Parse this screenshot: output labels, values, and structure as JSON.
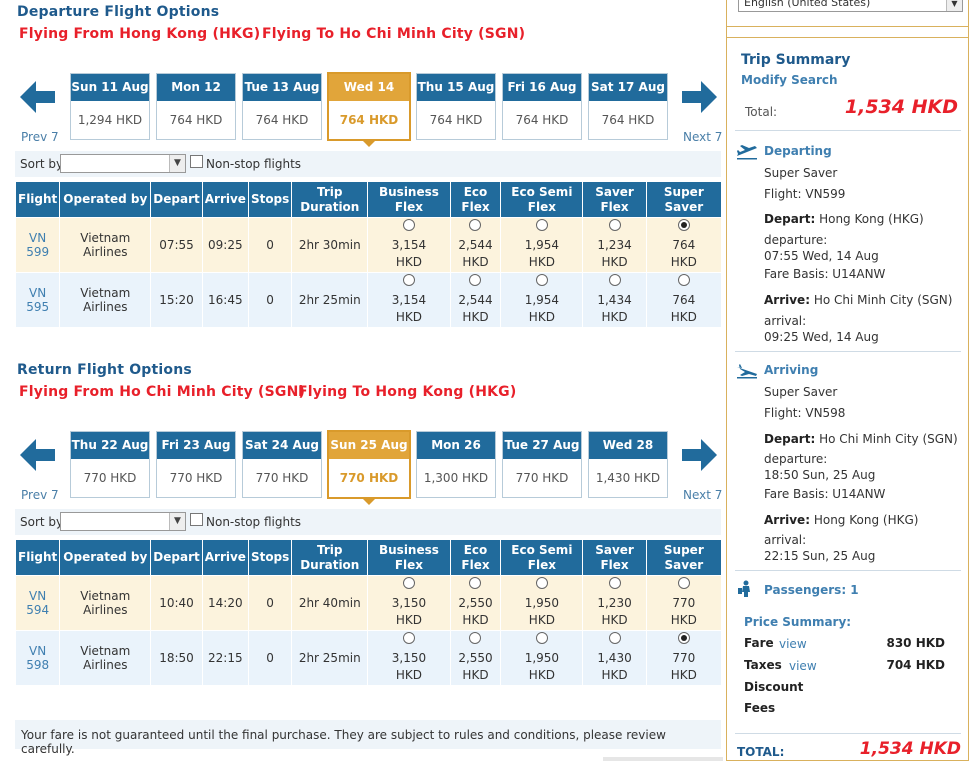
{
  "departure": {
    "title": "Departure Flight Options",
    "from": "Flying From Hong Kong (HKG)",
    "to": "Flying To Ho Chi Minh City (SGN)",
    "prev": "Prev 7",
    "next": "Next 7",
    "dates": [
      {
        "label": "Sun 11 Aug",
        "price": "1,294 HKD"
      },
      {
        "label": "Mon 12 Aug",
        "price": "764 HKD"
      },
      {
        "label": "Tue 13 Aug",
        "price": "764 HKD"
      },
      {
        "label": "Wed 14 Aug",
        "price": "764 HKD"
      },
      {
        "label": "Thu 15 Aug",
        "price": "764 HKD"
      },
      {
        "label": "Fri 16 Aug",
        "price": "764 HKD"
      },
      {
        "label": "Sat 17 Aug",
        "price": "764 HKD"
      }
    ],
    "sort_label": "Sort by",
    "nonstop_label": "Non-stop flights",
    "flights": [
      {
        "flight": "VN 599",
        "operator": "Vietnam Airlines",
        "depart": "07:55",
        "arrive": "09:25",
        "stops": "0",
        "duration": "2hr 30min",
        "fares": [
          "3,154",
          "2,544",
          "1,954",
          "1,234",
          "764"
        ],
        "currency": "HKD"
      },
      {
        "flight": "VN 595",
        "operator": "Vietnam Airlines",
        "depart": "15:20",
        "arrive": "16:45",
        "stops": "0",
        "duration": "2hr 25min",
        "fares": [
          "3,154",
          "2,544",
          "1,954",
          "1,434",
          "764"
        ],
        "currency": "HKD"
      }
    ]
  },
  "return": {
    "title": "Return Flight Options",
    "from": "Flying From Ho Chi Minh City (SGN)",
    "to": "Flying To Hong Kong (HKG)",
    "prev": "Prev 7",
    "next": "Next 7",
    "dates": [
      {
        "label": "Thu 22 Aug",
        "price": "770 HKD"
      },
      {
        "label": "Fri 23 Aug",
        "price": "770 HKD"
      },
      {
        "label": "Sat 24 Aug",
        "price": "770 HKD"
      },
      {
        "label": "Sun 25 Aug",
        "price": "770 HKD"
      },
      {
        "label": "Mon 26 Aug",
        "price": "1,300 HKD"
      },
      {
        "label": "Tue 27 Aug",
        "price": "770 HKD"
      },
      {
        "label": "Wed 28 Aug",
        "price": "1,430 HKD"
      }
    ],
    "sort_label": "Sort by",
    "nonstop_label": "Non-stop flights",
    "flights": [
      {
        "flight": "VN 594",
        "operator": "Vietnam Airlines",
        "depart": "10:40",
        "arrive": "14:20",
        "stops": "0",
        "duration": "2hr 40min",
        "fares": [
          "3,150",
          "2,550",
          "1,950",
          "1,230",
          "770"
        ],
        "currency": "HKD"
      },
      {
        "flight": "VN 598",
        "operator": "Vietnam Airlines",
        "depart": "18:50",
        "arrive": "22:15",
        "stops": "0",
        "duration": "2hr 25min",
        "fares": [
          "3,150",
          "2,550",
          "1,950",
          "1,430",
          "770"
        ],
        "currency": "HKD"
      }
    ]
  },
  "table_headers": {
    "flight": "Flight",
    "operated_by": "Operated by",
    "depart": "Depart",
    "arrive": "Arrive",
    "stops": "Stops",
    "duration_1": "Trip",
    "duration_2": "Duration",
    "business_1": "Business",
    "business_2": "Flex",
    "eco_1": "Eco",
    "eco_2": "Flex",
    "ecosemi_1": "Eco Semi",
    "ecosemi_2": "Flex",
    "saver_1": "Saver",
    "saver_2": "Flex",
    "super_1": "Super",
    "super_2": "Saver"
  },
  "notice": "Your fare is not guaranteed until the final purchase. They are subject to rules and conditions, please review carefully.",
  "language": "English (United States)",
  "summary": {
    "title": "Trip Summary",
    "modify": "Modify Search",
    "total_label": "Total:",
    "total": "1,534 HKD",
    "departing": {
      "heading": "Departing",
      "fare_type": "Super Saver",
      "flight": "Flight: VN599",
      "depart_label": "Depart:",
      "depart_place": "Hong Kong (HKG)",
      "departure_label": "departure:",
      "departure_time": "07:55 Wed, 14 Aug",
      "fare_basis": "Fare Basis: U14ANW",
      "arrive_label": "Arrive:",
      "arrive_place": "Ho Chi Minh City (SGN)",
      "arrival_label": "arrival:",
      "arrival_time": "09:25 Wed, 14 Aug"
    },
    "arriving": {
      "heading": "Arriving",
      "fare_type": "Super Saver",
      "flight": "Flight: VN598",
      "depart_label": "Depart:",
      "depart_place": "Ho Chi Minh City (SGN)",
      "departure_label": "departure:",
      "departure_time": "18:50 Sun, 25 Aug",
      "fare_basis": "Fare Basis: U14ANW",
      "arrive_label": "Arrive:",
      "arrive_place": "Hong Kong (HKG)",
      "arrival_label": "arrival:",
      "arrival_time": "22:15 Sun, 25 Aug"
    },
    "passengers": "Passengers: 1",
    "price_summary": "Price Summary:",
    "fare_label": "Fare",
    "fare_view": "view",
    "fare_amount": "830 HKD",
    "taxes_label": "Taxes",
    "taxes_view": "view",
    "taxes_amount": "704 HKD",
    "discount_label": "Discount",
    "fees_label": "Fees",
    "grand_label": "TOTAL:",
    "grand_total": "1,534 HKD"
  },
  "colors": {
    "header_blue": "#216b9c",
    "selected_gold": "#e1a53a",
    "price_red": "#e8202a"
  }
}
